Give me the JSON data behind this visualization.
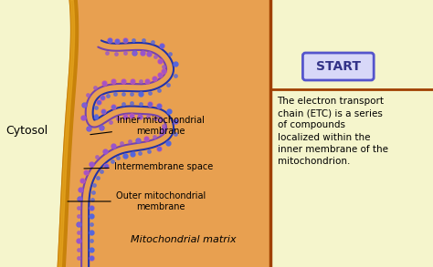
{
  "bg_color": "#f5f5cc",
  "mito_color": "#e8a050",
  "outer_membrane_color_dark": "#c8820a",
  "outer_membrane_color_light": "#e8a820",
  "cytosol_text": "Cytosol",
  "label_inner": "Inner mitochondrial\nmembrane",
  "label_inter": "Intermembrane space",
  "label_outer": "Outer mitochondrial\nmembrane",
  "label_matrix": "Mitochondrial matrix",
  "start_text": "START",
  "start_box_color": "#d8d8f8",
  "start_border_color": "#5555cc",
  "divider_color": "#a04000",
  "description": "The electron transport\nchain (ETC) is a series\nof compounds\nlocalized within the\ninner membrane of the\nmitochondrion.",
  "right_bg": "#f5f5cc",
  "membrane_blue": "#2233aa",
  "membrane_purple": "#7744aa",
  "bead_purple": "#9955cc",
  "bead_pink": "#cc55aa",
  "bead_blue": "#5566dd"
}
